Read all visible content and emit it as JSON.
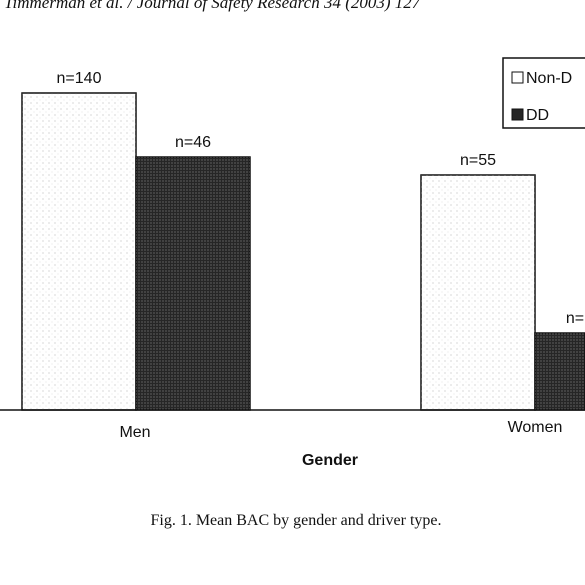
{
  "header": "Timmerman et al. / Journal of Safety Research 34 (2003) 127",
  "caption": "Fig. 1. Mean BAC by gender and driver type.",
  "chart_data": {
    "type": "bar",
    "x_label": "Gender",
    "categories": [
      "Men",
      "Women"
    ],
    "series": [
      {
        "name": "Non-D",
        "color": "#ffffff",
        "values": [
          317,
          235
        ],
        "labels": [
          "n=140",
          "n=55"
        ]
      },
      {
        "name": "DD",
        "color": "#262626",
        "values": [
          253,
          77
        ],
        "labels": [
          "n=46",
          "n="
        ]
      }
    ]
  }
}
